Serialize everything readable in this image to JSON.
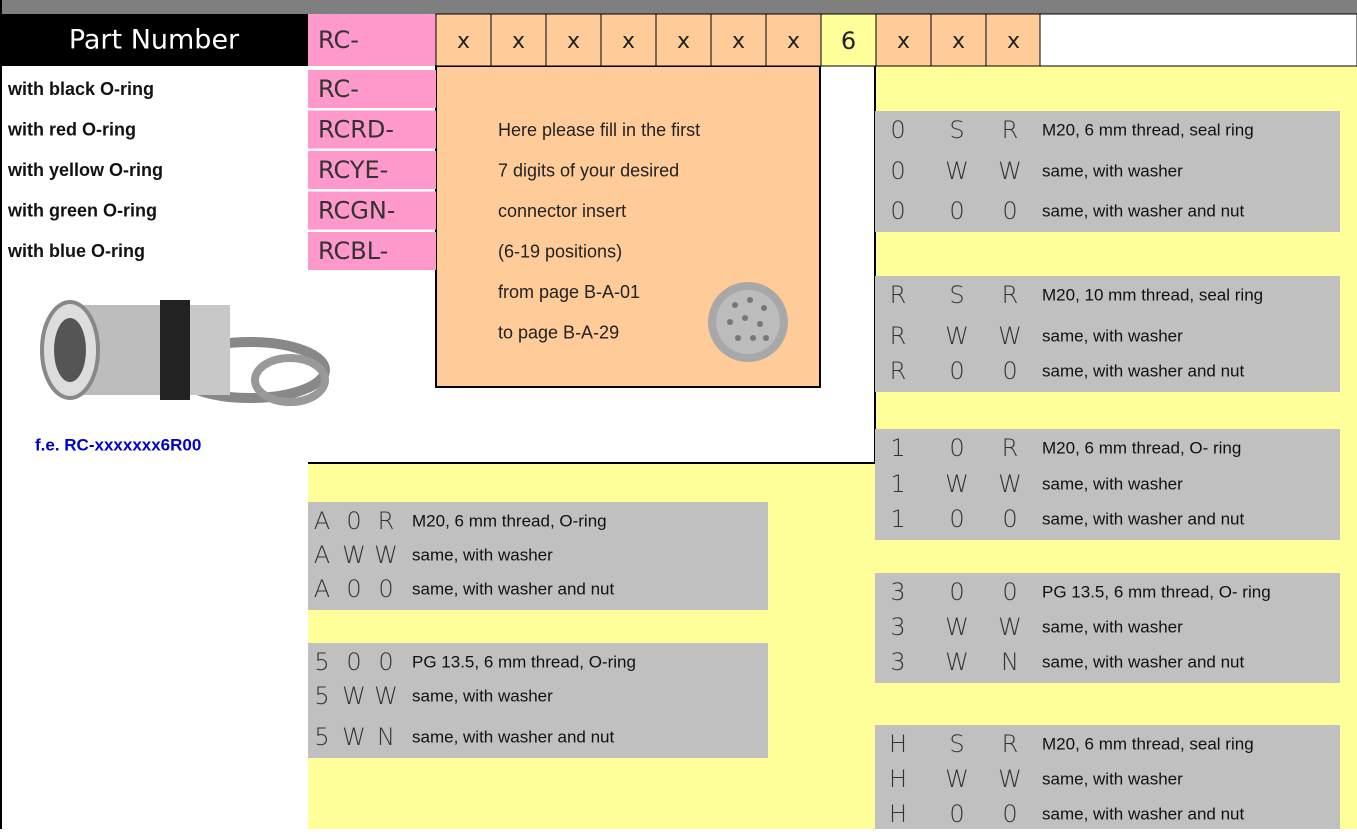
{
  "header": {
    "label": "Part Number",
    "prefix": "RC-",
    "digits": [
      "x",
      "x",
      "x",
      "x",
      "x",
      "x",
      "x",
      "6",
      "x",
      "x",
      "x"
    ]
  },
  "colors": [
    {
      "label": "with black O-ring",
      "code": "RC-"
    },
    {
      "label": "with red O-ring",
      "code": "RCRD-"
    },
    {
      "label": "with yellow O-ring",
      "code": "RCYE-"
    },
    {
      "label": "with green O-ring",
      "code": "RCGN-"
    },
    {
      "label": "with blue O-ring",
      "code": "RCBL-"
    }
  ],
  "insert_note": [
    "Here please fill in the first",
    "7 digits of your desired",
    "connector insert",
    "(6-19 positions)",
    "from page B-A-01",
    "to page B-A-29"
  ],
  "example": "f.e. RC-xxxxxxx6R00",
  "right_options": [
    [
      {
        "codes": [
          "0",
          "S",
          "R"
        ],
        "desc": "M20, 6 mm thread, seal ring"
      },
      {
        "codes": [
          "0",
          "W",
          "W"
        ],
        "desc": "same, with washer"
      },
      {
        "codes": [
          "0",
          "0",
          "0"
        ],
        "desc": "same, with washer and nut"
      }
    ],
    [
      {
        "codes": [
          "R",
          "S",
          "R"
        ],
        "desc": "M20, 10 mm thread, seal ring"
      },
      {
        "codes": [
          "R",
          "W",
          "W"
        ],
        "desc": "same, with washer"
      },
      {
        "codes": [
          "R",
          "0",
          "0"
        ],
        "desc": "same, with washer and nut"
      }
    ],
    [
      {
        "codes": [
          "1",
          "0",
          "R"
        ],
        "desc": "M20, 6 mm thread, O- ring"
      },
      {
        "codes": [
          "1",
          "W",
          "W"
        ],
        "desc": "same, with washer"
      },
      {
        "codes": [
          "1",
          "0",
          "0"
        ],
        "desc": "same, with washer and nut"
      }
    ],
    [
      {
        "codes": [
          "3",
          "0",
          "0"
        ],
        "desc": "PG 13.5, 6 mm thread, O- ring"
      },
      {
        "codes": [
          "3",
          "W",
          "W"
        ],
        "desc": "same, with washer"
      },
      {
        "codes": [
          "3",
          "W",
          "N"
        ],
        "desc": "same, with washer and nut"
      }
    ],
    [
      {
        "codes": [
          "H",
          "S",
          "R"
        ],
        "desc": "M20, 6 mm thread, seal ring"
      },
      {
        "codes": [
          "H",
          "W",
          "W"
        ],
        "desc": "same, with washer"
      },
      {
        "codes": [
          "H",
          "0",
          "0"
        ],
        "desc": "same, with washer and nut"
      }
    ]
  ],
  "lower_options": [
    [
      {
        "codes": [
          "A",
          "0",
          "R"
        ],
        "desc": "M20, 6 mm thread, O-ring"
      },
      {
        "codes": [
          "A",
          "W",
          "W"
        ],
        "desc": "same, with washer"
      },
      {
        "codes": [
          "A",
          "0",
          "0"
        ],
        "desc": "same, with washer and nut"
      }
    ],
    [
      {
        "codes": [
          "5",
          "0",
          "0"
        ],
        "desc": "PG 13.5,  6 mm thread, O-ring"
      },
      {
        "codes": [
          "5",
          "W",
          "W"
        ],
        "desc": "same, with washer"
      },
      {
        "codes": [
          "5",
          "W",
          "N"
        ],
        "desc": "same, with washer and nut"
      }
    ]
  ]
}
